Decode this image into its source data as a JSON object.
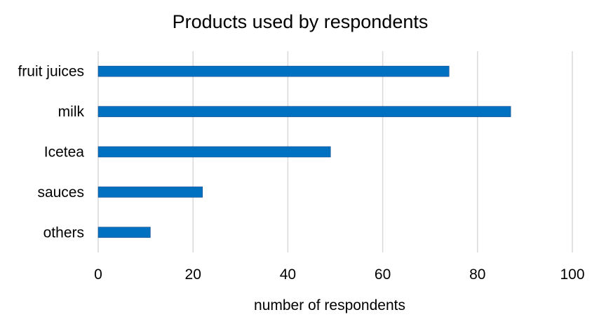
{
  "chart_data": {
    "type": "bar",
    "orientation": "horizontal",
    "title": "Products used by respondents",
    "xlabel": "number of respondents",
    "ylabel": "",
    "categories": [
      "fruit juices",
      "milk",
      "Icetea",
      "sauces",
      "others"
    ],
    "values": [
      74,
      87,
      49,
      22,
      11
    ],
    "xlim": [
      0,
      100
    ],
    "xticks": [
      0,
      20,
      40,
      60,
      80,
      100
    ],
    "grid": true,
    "legend": "none",
    "bar_color": "#0070c0",
    "grid_color": "#d9d9d9"
  }
}
